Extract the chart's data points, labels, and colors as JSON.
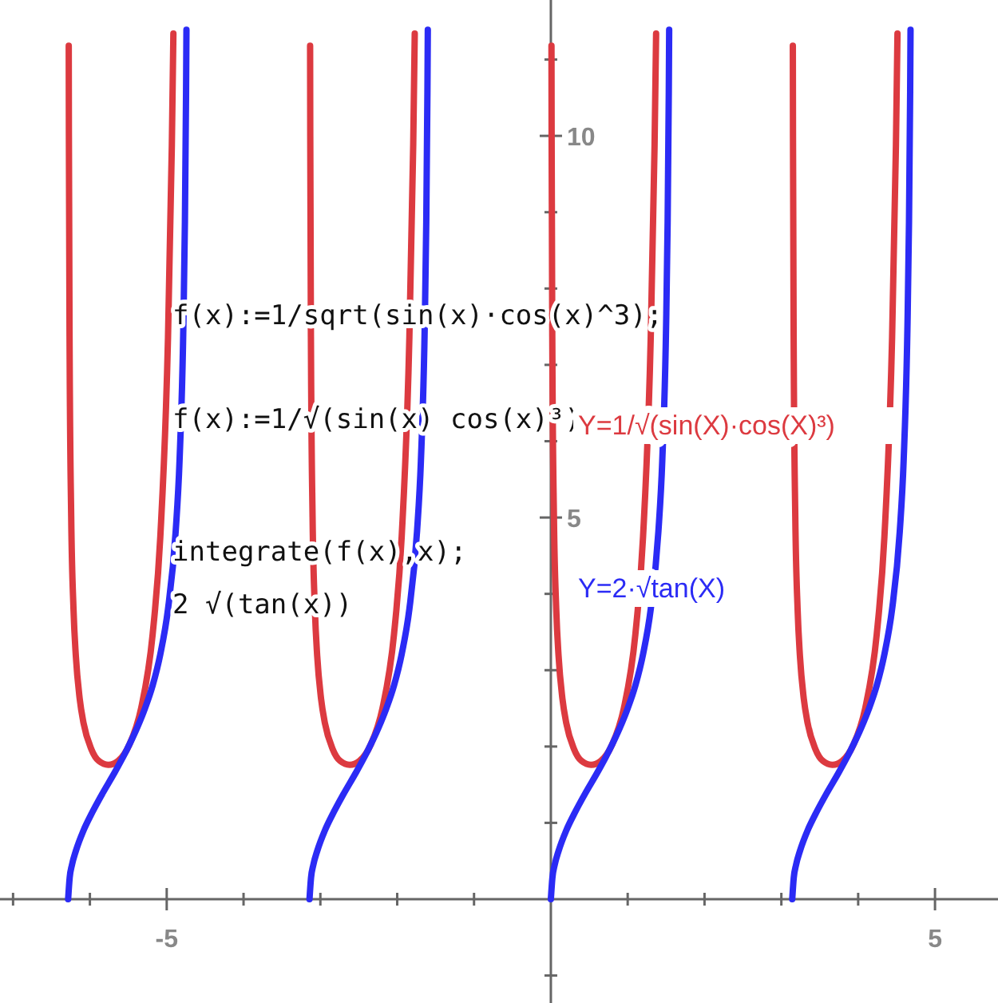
{
  "chart_data": {
    "type": "line",
    "xlim": [
      -7.17,
      5.82
    ],
    "ylim": [
      -1.36,
      11.78
    ],
    "xticks": [
      {
        "value": -7,
        "label": null
      },
      {
        "value": -6,
        "label": null
      },
      {
        "value": -5,
        "label": "-5"
      },
      {
        "value": -4,
        "label": null
      },
      {
        "value": -3,
        "label": null
      },
      {
        "value": -2,
        "label": null
      },
      {
        "value": -1,
        "label": null
      },
      {
        "value": 1,
        "label": null
      },
      {
        "value": 2,
        "label": null
      },
      {
        "value": 3,
        "label": null
      },
      {
        "value": 4,
        "label": null
      },
      {
        "value": 5,
        "label": "5"
      }
    ],
    "yticks": [
      {
        "value": -1,
        "label": null
      },
      {
        "value": 1,
        "label": null
      },
      {
        "value": 2,
        "label": null
      },
      {
        "value": 3,
        "label": null
      },
      {
        "value": 4,
        "label": null
      },
      {
        "value": 5,
        "label": "5"
      },
      {
        "value": 6,
        "label": null
      },
      {
        "value": 7,
        "label": null
      },
      {
        "value": 8,
        "label": null
      },
      {
        "value": 9,
        "label": null
      },
      {
        "value": 10,
        "label": "10"
      },
      {
        "value": 11,
        "label": null
      }
    ],
    "grid": false,
    "marker": "none",
    "line_style": "solid",
    "annotations": [
      "f(x):=1/sqrt(sin(x)·cos(x)^3);",
      "f(x):=1/√(sin(x) cos(x)³)",
      "integrate(f(x),x);",
      "2 √(tan(x))"
    ],
    "series": [
      {
        "name": "Y=1/√(sin(X)·cos(X)³)",
        "color": "#dc3a40",
        "x": [
          -6.2752,
          -6.2732,
          -6.2632,
          -6.2432,
          -6.2132,
          -6.1832,
          -6.1332,
          -6.0832,
          -5.9832,
          -5.8832,
          -5.7596,
          -5.6332,
          -5.4832,
          -5.3332,
          -5.1832,
          -5.0832,
          -4.9832,
          -4.9332,
          -4.9132,
          -4,
          -3.1336,
          -3.1316,
          -3.1216,
          -3.1016,
          -3.0716,
          -3.0416,
          -2.9916,
          -2.9416,
          -2.8416,
          -2.7416,
          -2.618,
          -2.4916,
          -2.3416,
          -2.1916,
          -2.0416,
          -1.9416,
          -1.8416,
          -1.7916,
          -1.7716,
          -0.9,
          0.008,
          0.01,
          0.02,
          0.04,
          0.07,
          0.1,
          0.15,
          0.2,
          0.3,
          0.4,
          0.5236,
          0.65,
          0.8,
          0.95,
          1.1,
          1.2,
          1.3,
          1.35,
          1.37,
          2.3,
          3.1496,
          3.1516,
          3.1616,
          3.1816,
          3.2116,
          3.2416,
          3.2916,
          3.3416,
          3.4416,
          3.5416,
          3.6652,
          3.7916,
          3.9416,
          4.0916,
          4.2416,
          4.3416,
          4.4416,
          4.4916,
          4.5116
        ],
        "values": [
          11.18,
          10.0,
          7.07,
          5.01,
          3.8,
          3.19,
          2.63,
          2.31,
          1.97,
          1.81,
          1.76,
          1.81,
          2.03,
          2.5,
          3.47,
          4.75,
          7.36,
          9.88,
          11.34,
          null,
          11.18,
          10.0,
          7.07,
          5.01,
          3.8,
          3.19,
          2.63,
          2.31,
          1.97,
          1.81,
          1.76,
          1.81,
          2.03,
          2.5,
          3.47,
          4.75,
          7.36,
          9.88,
          11.34,
          null,
          11.18,
          10.0,
          7.07,
          5.01,
          3.8,
          3.19,
          2.63,
          2.31,
          1.97,
          1.81,
          1.76,
          1.81,
          2.03,
          2.5,
          3.47,
          4.75,
          7.36,
          9.88,
          11.34,
          null,
          11.18,
          10.0,
          7.07,
          5.01,
          3.8,
          3.19,
          2.63,
          2.31,
          1.97,
          1.81,
          1.76,
          1.81,
          2.03,
          2.5,
          3.47,
          4.75,
          7.36,
          9.88,
          11.34
        ]
      },
      {
        "name": "Y=2·√tan(X)",
        "color": "#2b2bf5",
        "x": [
          -6.2832,
          -6.2632,
          -6.2332,
          -6.1832,
          -6.0832,
          -5.9832,
          -5.8332,
          -5.6832,
          -5.5332,
          -5.3832,
          -5.2832,
          -5.1832,
          -5.0832,
          -4.9832,
          -4.8832,
          -4.8332,
          -4.7832,
          -4.7632,
          -4.7482,
          -4.7432,
          -4,
          -3.1416,
          -3.1216,
          -3.0916,
          -3.0416,
          -2.9416,
          -2.8416,
          -2.6916,
          -2.5416,
          -2.3916,
          -2.2416,
          -2.1416,
          -2.0416,
          -1.9416,
          -1.8416,
          -1.7416,
          -1.6916,
          -1.6416,
          -1.6216,
          -1.6066,
          -1.6016,
          -0.8,
          0,
          0.02,
          0.05,
          0.1,
          0.2,
          0.3,
          0.45,
          0.6,
          0.75,
          0.9,
          1.0,
          1.1,
          1.2,
          1.3,
          1.4,
          1.45,
          1.5,
          1.52,
          1.535,
          1.54,
          2.3,
          3.1416,
          3.1616,
          3.1916,
          3.2416,
          3.3416,
          3.4416,
          3.5916,
          3.7416,
          3.8916,
          4.0416,
          4.1416,
          4.2416,
          4.3416,
          4.4416,
          4.5416,
          4.5916,
          4.6416,
          4.6616,
          4.6766,
          4.6816
        ],
        "values": [
          0,
          0.28,
          0.45,
          0.63,
          0.9,
          1.11,
          1.39,
          1.65,
          1.93,
          2.25,
          2.5,
          2.8,
          3.21,
          3.8,
          4.82,
          5.74,
          7.51,
          8.87,
          10.57,
          11.39,
          null,
          0,
          0.28,
          0.45,
          0.63,
          0.9,
          1.11,
          1.39,
          1.65,
          1.93,
          2.25,
          2.5,
          2.8,
          3.21,
          3.8,
          4.82,
          5.74,
          7.51,
          8.87,
          10.57,
          11.39,
          null,
          0,
          0.28,
          0.45,
          0.63,
          0.9,
          1.11,
          1.39,
          1.65,
          1.93,
          2.25,
          2.5,
          2.8,
          3.21,
          3.8,
          4.82,
          5.74,
          7.51,
          8.87,
          10.57,
          11.39,
          null,
          0,
          0.28,
          0.45,
          0.63,
          0.9,
          1.11,
          1.39,
          1.65,
          1.93,
          2.25,
          2.5,
          2.8,
          3.21,
          3.8,
          4.82,
          5.74,
          7.51,
          8.87,
          10.57,
          11.39
        ]
      }
    ]
  }
}
